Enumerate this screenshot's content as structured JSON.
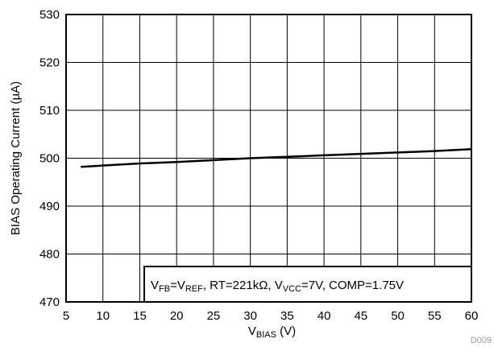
{
  "chart_data": {
    "type": "line",
    "xlabel": {
      "main": "V",
      "sub": "BIAS",
      "unit": " (V)"
    },
    "ylabel": "BIAS Operating Current (µA)",
    "xlim": [
      5,
      60
    ],
    "ylim": [
      470,
      530
    ],
    "xticks": [
      "5",
      "10",
      "15",
      "20",
      "25",
      "30",
      "35",
      "40",
      "45",
      "50",
      "55",
      "60"
    ],
    "yticks": [
      "470",
      "480",
      "490",
      "500",
      "510",
      "520",
      "530"
    ],
    "grid": true,
    "series": [
      {
        "x": [
          7,
          15,
          20,
          25,
          30,
          35,
          40,
          45,
          50,
          55,
          60
        ],
        "y": [
          498.2,
          498.9,
          499.2,
          499.6,
          500.0,
          500.3,
          500.6,
          500.9,
          501.2,
          501.5,
          501.9
        ]
      }
    ],
    "annotation": [
      {
        "t": "V",
        "sub": false
      },
      {
        "t": "FB",
        "sub": true
      },
      {
        "t": "=V",
        "sub": false
      },
      {
        "t": "REF",
        "sub": true
      },
      {
        "t": ", RT=221kΩ, V",
        "sub": false
      },
      {
        "t": "VCC",
        "sub": true
      },
      {
        "t": "=7V, COMP=1.75V",
        "sub": false
      }
    ],
    "figure_code": "D009"
  }
}
